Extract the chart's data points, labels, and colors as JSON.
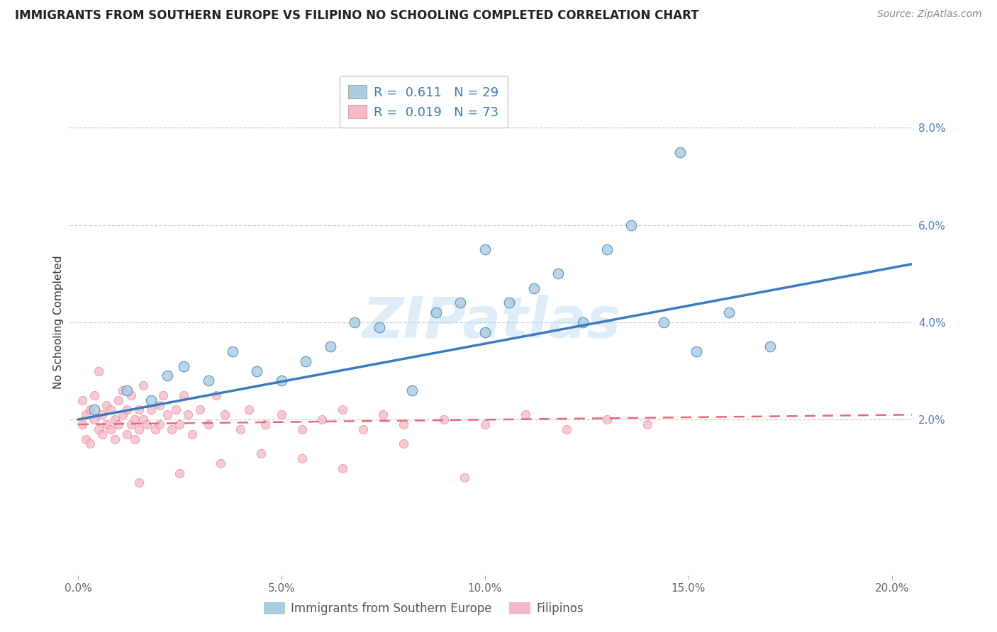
{
  "title": "IMMIGRANTS FROM SOUTHERN EUROPE VS FILIPINO NO SCHOOLING COMPLETED CORRELATION CHART",
  "source": "Source: ZipAtlas.com",
  "ylabel": "No Schooling Completed",
  "legend_label1": "Immigrants from Southern Europe",
  "legend_label2": "Filipinos",
  "r1": "0.611",
  "n1": "29",
  "r2": "0.019",
  "n2": "73",
  "xlim": [
    -0.002,
    0.205
  ],
  "ylim": [
    -0.012,
    0.092
  ],
  "xtick_vals": [
    0.0,
    0.05,
    0.1,
    0.15,
    0.2
  ],
  "ytick_vals": [
    0.02,
    0.04,
    0.06,
    0.08
  ],
  "ytick_labels": [
    "2.0%",
    "4.0%",
    "6.0%",
    "8.0%"
  ],
  "xtick_labels": [
    "0.0%",
    "5.0%",
    "10.0%",
    "15.0%",
    "20.0%"
  ],
  "color_blue": "#a8cce0",
  "color_pink": "#f5b8c4",
  "line_blue": "#3a7bbf",
  "line_pink": "#e8697a",
  "watermark": "ZIPatlas",
  "blue_x": [
    0.004,
    0.012,
    0.018,
    0.022,
    0.026,
    0.032,
    0.038,
    0.044,
    0.05,
    0.056,
    0.062,
    0.068,
    0.074,
    0.082,
    0.088,
    0.094,
    0.1,
    0.106,
    0.112,
    0.118,
    0.124,
    0.13,
    0.136,
    0.144,
    0.152,
    0.16,
    0.1,
    0.148,
    0.17
  ],
  "blue_y": [
    0.022,
    0.026,
    0.024,
    0.029,
    0.031,
    0.028,
    0.034,
    0.03,
    0.028,
    0.032,
    0.035,
    0.04,
    0.039,
    0.026,
    0.042,
    0.044,
    0.038,
    0.044,
    0.047,
    0.05,
    0.04,
    0.055,
    0.06,
    0.04,
    0.034,
    0.042,
    0.055,
    0.075,
    0.035
  ],
  "pink_x": [
    0.001,
    0.001,
    0.002,
    0.002,
    0.003,
    0.003,
    0.004,
    0.004,
    0.005,
    0.005,
    0.006,
    0.006,
    0.007,
    0.007,
    0.008,
    0.008,
    0.009,
    0.009,
    0.01,
    0.01,
    0.011,
    0.011,
    0.012,
    0.012,
    0.013,
    0.013,
    0.014,
    0.014,
    0.015,
    0.015,
    0.016,
    0.016,
    0.017,
    0.018,
    0.019,
    0.02,
    0.02,
    0.021,
    0.022,
    0.023,
    0.024,
    0.025,
    0.026,
    0.027,
    0.028,
    0.03,
    0.032,
    0.034,
    0.036,
    0.04,
    0.042,
    0.046,
    0.05,
    0.055,
    0.06,
    0.065,
    0.07,
    0.075,
    0.08,
    0.09,
    0.1,
    0.11,
    0.12,
    0.13,
    0.14,
    0.015,
    0.025,
    0.035,
    0.045,
    0.055,
    0.065,
    0.08,
    0.095
  ],
  "pink_y": [
    0.019,
    0.024,
    0.016,
    0.021,
    0.022,
    0.015,
    0.02,
    0.025,
    0.018,
    0.03,
    0.021,
    0.017,
    0.019,
    0.023,
    0.018,
    0.022,
    0.02,
    0.016,
    0.019,
    0.024,
    0.021,
    0.026,
    0.017,
    0.022,
    0.019,
    0.025,
    0.02,
    0.016,
    0.022,
    0.018,
    0.02,
    0.027,
    0.019,
    0.022,
    0.018,
    0.023,
    0.019,
    0.025,
    0.021,
    0.018,
    0.022,
    0.019,
    0.025,
    0.021,
    0.017,
    0.022,
    0.019,
    0.025,
    0.021,
    0.018,
    0.022,
    0.019,
    0.021,
    0.018,
    0.02,
    0.022,
    0.018,
    0.021,
    0.019,
    0.02,
    0.019,
    0.021,
    0.018,
    0.02,
    0.019,
    0.007,
    0.009,
    0.011,
    0.013,
    0.012,
    0.01,
    0.015,
    0.008
  ],
  "blue_line_x0": 0.0,
  "blue_line_x1": 0.205,
  "blue_line_y0": 0.02,
  "blue_line_y1": 0.052,
  "pink_line_x0": 0.0,
  "pink_line_x1": 0.205,
  "pink_line_y0": 0.019,
  "pink_line_y1": 0.021
}
